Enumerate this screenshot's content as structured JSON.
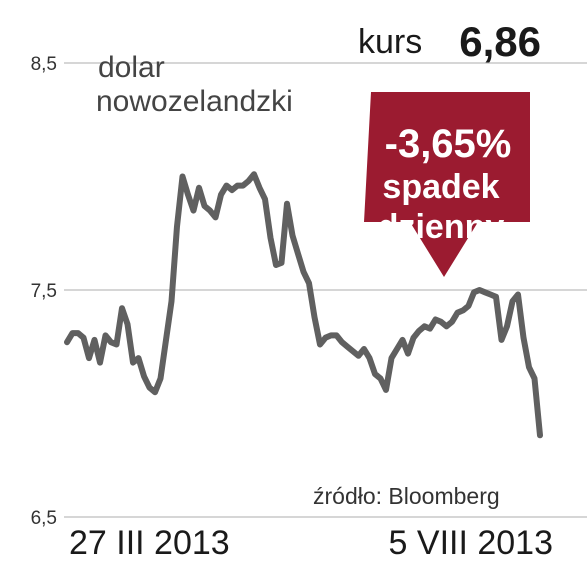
{
  "chart_data": {
    "type": "line",
    "title": "dolar",
    "subtitle": "nowozelandzki",
    "kurs_label": "kurs",
    "kurs_value": "6,86",
    "badge": {
      "change": "-3,65%",
      "line1": "spadek",
      "line2": "dzienny"
    },
    "source": "źródło: Bloomberg",
    "x_start_label": "27 III 2013",
    "x_end_label": "5 VIII 2013",
    "ylim": [
      6.5,
      8.5
    ],
    "yticks": [
      {
        "value": 8.5,
        "label": "8,5"
      },
      {
        "value": 7.5,
        "label": "7,5"
      },
      {
        "value": 6.5,
        "label": "6,5"
      }
    ],
    "grid": true,
    "series": [
      {
        "values": [
          7.27,
          7.31,
          7.31,
          7.29,
          7.2,
          7.28,
          7.18,
          7.3,
          7.27,
          7.26,
          7.42,
          7.35,
          7.18,
          7.2,
          7.12,
          7.07,
          7.05,
          7.11,
          7.28,
          7.45,
          7.78,
          8.0,
          7.92,
          7.85,
          7.95,
          7.87,
          7.85,
          7.82,
          7.92,
          7.96,
          7.94,
          7.96,
          7.96,
          7.98,
          8.01,
          7.95,
          7.9,
          7.73,
          7.61,
          7.62,
          7.88,
          7.74,
          7.66,
          7.58,
          7.53,
          7.38,
          7.26,
          7.29,
          7.3,
          7.3,
          7.27,
          7.25,
          7.23,
          7.21,
          7.24,
          7.2,
          7.13,
          7.11,
          7.06,
          7.2,
          7.24,
          7.28,
          7.22,
          7.29,
          7.32,
          7.34,
          7.33,
          7.37,
          7.36,
          7.34,
          7.36,
          7.4,
          7.41,
          7.43,
          7.49,
          7.5,
          7.49,
          7.48,
          7.47,
          7.28,
          7.34,
          7.45,
          7.48,
          7.29,
          7.16,
          7.11,
          6.86
        ]
      }
    ],
    "colors": {
      "line": "#606060",
      "grid": "#c8c8c8",
      "badge": "#9b1b30"
    }
  }
}
